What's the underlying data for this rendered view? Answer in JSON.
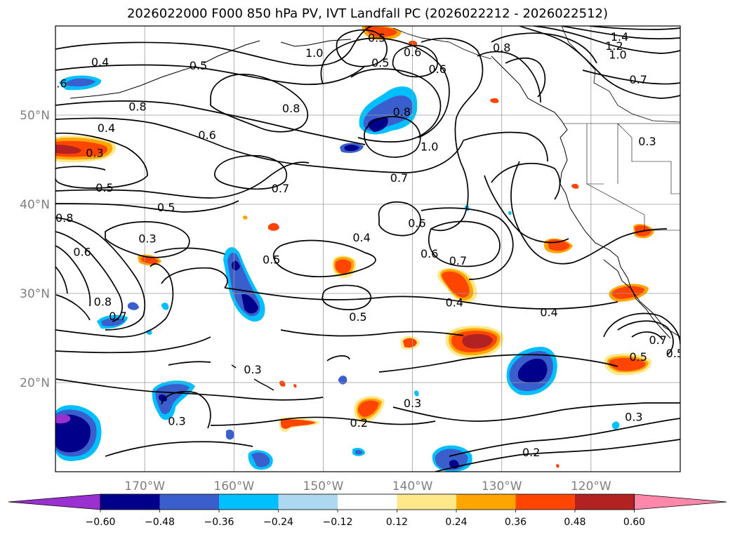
{
  "figure": {
    "title": "2026022000 F000 850 hPa PV, IVT Landfall PC (2026022212 - 2026022512)"
  },
  "map": {
    "projection": "PlateCarree",
    "extent_lon": [
      -180,
      -110
    ],
    "extent_lat": [
      10,
      60
    ],
    "lon_ticks": [
      {
        "lon": -170,
        "label": "170°W"
      },
      {
        "lon": -160,
        "label": "160°W"
      },
      {
        "lon": -150,
        "label": "150°W"
      },
      {
        "lon": -140,
        "label": "140°W"
      },
      {
        "lon": -130,
        "label": "130°W"
      },
      {
        "lon": -120,
        "label": "120°W"
      }
    ],
    "lat_ticks": [
      {
        "lat": 20,
        "label": "20°N"
      },
      {
        "lat": 30,
        "label": "30°N"
      },
      {
        "lat": 40,
        "label": "40°N"
      },
      {
        "lat": 50,
        "label": "50°N"
      }
    ],
    "gridlines": true,
    "contour_labels": [
      {
        "text": "0.4",
        "lon": -175.0,
        "lat": 56.0
      },
      {
        "text": "0.5",
        "lon": -164.0,
        "lat": 55.6
      },
      {
        "text": "1.0",
        "lon": -151.0,
        "lat": 57.0
      },
      {
        "text": "0.5",
        "lon": -144.0,
        "lat": 58.7
      },
      {
        "text": "0.5",
        "lon": -143.6,
        "lat": 55.9
      },
      {
        "text": "0.6",
        "lon": -140.0,
        "lat": 57.1
      },
      {
        "text": "0.6",
        "lon": -137.2,
        "lat": 55.2
      },
      {
        "text": "0.8",
        "lon": -130.0,
        "lat": 57.6
      },
      {
        "text": "1.4",
        "lon": -116.8,
        "lat": 58.8
      },
      {
        "text": "1.2",
        "lon": -117.4,
        "lat": 57.8
      },
      {
        "text": "1.0",
        "lon": -117.0,
        "lat": 56.8
      },
      {
        "text": ".6",
        "lon": -179.3,
        "lat": 53.6
      },
      {
        "text": "0.7",
        "lon": -114.7,
        "lat": 54.0
      },
      {
        "text": "0.8",
        "lon": -170.8,
        "lat": 51.0
      },
      {
        "text": "0.8",
        "lon": -153.6,
        "lat": 50.8
      },
      {
        "text": "0.8",
        "lon": -141.2,
        "lat": 50.4
      },
      {
        "text": "0.4",
        "lon": -174.3,
        "lat": 48.6
      },
      {
        "text": "0.6",
        "lon": -163.0,
        "lat": 47.8
      },
      {
        "text": "0.3",
        "lon": -175.6,
        "lat": 45.8
      },
      {
        "text": "1.0",
        "lon": -138.1,
        "lat": 46.5
      },
      {
        "text": "0.3",
        "lon": -113.7,
        "lat": 47.1
      },
      {
        "text": "0.7",
        "lon": -141.5,
        "lat": 43.0
      },
      {
        "text": "0.7",
        "lon": -154.8,
        "lat": 41.8
      },
      {
        "text": "0.5",
        "lon": -174.5,
        "lat": 41.9
      },
      {
        "text": "0.5",
        "lon": -167.6,
        "lat": 39.7
      },
      {
        "text": "0.8",
        "lon": -179.0,
        "lat": 38.5
      },
      {
        "text": "0.6",
        "lon": -139.5,
        "lat": 37.9
      },
      {
        "text": "0.3",
        "lon": -169.7,
        "lat": 36.2
      },
      {
        "text": "0.4",
        "lon": -145.7,
        "lat": 36.3
      },
      {
        "text": "0.6",
        "lon": -177.0,
        "lat": 34.7
      },
      {
        "text": "0.5",
        "lon": -155.8,
        "lat": 33.8
      },
      {
        "text": "0.6",
        "lon": -138.1,
        "lat": 34.5
      },
      {
        "text": "0.7",
        "lon": -134.9,
        "lat": 33.7
      },
      {
        "text": "0.8",
        "lon": -174.7,
        "lat": 29.1
      },
      {
        "text": "0.7",
        "lon": -173.0,
        "lat": 27.5
      },
      {
        "text": "0.4",
        "lon": -135.3,
        "lat": 29.0
      },
      {
        "text": "0.5",
        "lon": -146.1,
        "lat": 27.4
      },
      {
        "text": "0.4",
        "lon": -124.7,
        "lat": 27.9
      },
      {
        "text": "0.7",
        "lon": -112.5,
        "lat": 24.8
      },
      {
        "text": "0.5",
        "lon": -110.6,
        "lat": 23.3
      },
      {
        "text": "0.5",
        "lon": -114.7,
        "lat": 22.9
      },
      {
        "text": "0.3",
        "lon": -157.9,
        "lat": 21.5
      },
      {
        "text": "0.3",
        "lon": -140.0,
        "lat": 17.7
      },
      {
        "text": "0.3",
        "lon": -166.4,
        "lat": 15.7
      },
      {
        "text": "0.2",
        "lon": -146.0,
        "lat": 15.5
      },
      {
        "text": "0.3",
        "lon": -115.2,
        "lat": 16.2
      },
      {
        "text": "0.2",
        "lon": -126.7,
        "lat": 12.2
      }
    ]
  },
  "colorbar": {
    "tick_values": [
      "−0.60",
      "−0.48",
      "−0.36",
      "−0.24",
      "−0.12",
      "0.12",
      "0.24",
      "0.36",
      "0.48",
      "0.60"
    ],
    "colors": [
      "#9b30d0",
      "#00008b",
      "#3a5fcd",
      "#00bfff",
      "#add8f0",
      "#ffffff",
      "#ffe88a",
      "#ffa500",
      "#ff4500",
      "#b22222",
      "#ff88aa"
    ]
  }
}
